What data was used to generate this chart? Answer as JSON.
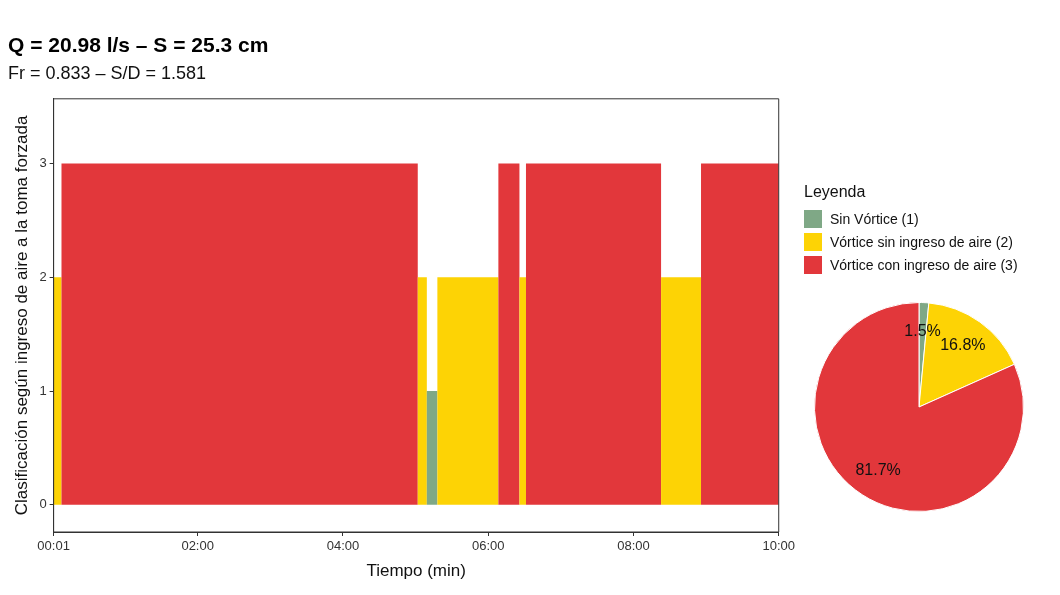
{
  "chart_data": [
    {
      "type": "histogram",
      "title": "Q = 20.98 l/s – S = 25.3 cm",
      "subtitle": "Fr = 0.833 – S/D = 1.581",
      "xlabel": "Tiempo (min)",
      "ylabel": "Clasificación según ingreso de aire a la toma forzada",
      "bins": [
        0.0167,
        0.125,
        5.03,
        5.155,
        5.3,
        6.14,
        6.43,
        6.52,
        8.38,
        8.93,
        10
      ],
      "values": [
        2,
        3,
        2,
        1,
        2,
        3,
        2,
        3,
        2,
        3
      ],
      "colors": [
        "#fdd305",
        "#e2373b",
        "#fdd305",
        "#7fa886",
        "#fdd305",
        "#e2373b",
        "#fdd305",
        "#e2373b",
        "#fdd305",
        "#e2373b"
      ],
      "xlim": [
        0.0167,
        10
      ],
      "xticks": [
        {
          "value": 0.0167,
          "label": "00:01"
        },
        {
          "value": 2,
          "label": "02:00"
        },
        {
          "value": 4,
          "label": "04:00"
        },
        {
          "value": 6,
          "label": "06:00"
        },
        {
          "value": 8,
          "label": "08:00"
        },
        {
          "value": 10,
          "label": "10:00"
        }
      ],
      "ylim": [
        -0.24,
        3.57
      ],
      "yticks": [
        0,
        1,
        2,
        3
      ],
      "grid": false
    },
    {
      "type": "pie",
      "legend_title": "Leyenda",
      "legend": "top",
      "categories": [
        "Sin Vórtice (1)",
        "Vórtice sin ingreso de aire (2)",
        "Vórtice con ingreso de aire (3)"
      ],
      "values": [
        1.5,
        16.8,
        81.7
      ],
      "colors": [
        "#7fa886",
        "#fdd305",
        "#e2373b"
      ],
      "value_labels": [
        "1.5%",
        "16.8%",
        "81.7%"
      ]
    }
  ]
}
